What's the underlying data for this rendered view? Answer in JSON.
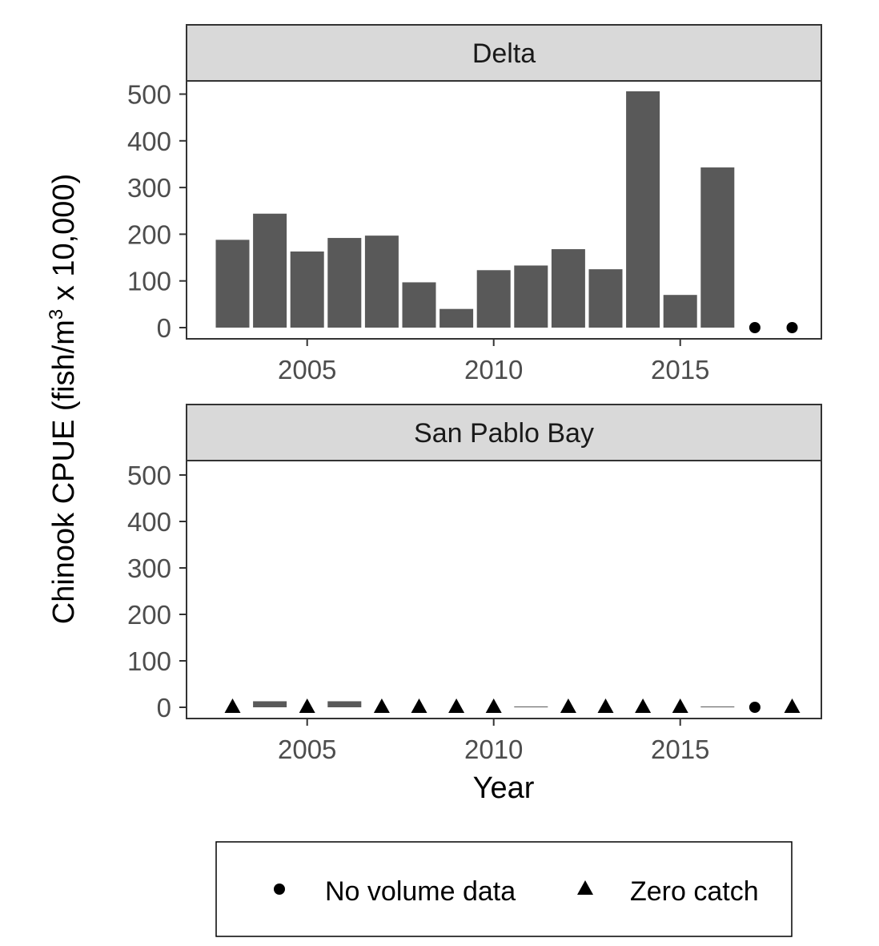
{
  "chart_data": {
    "type": "bar",
    "xlabel": "Year",
    "ylabel_main": "Chinook CPUE (fish/m",
    "ylabel_sup": "3",
    "ylabel_tail": " x 10,000)",
    "ylim": [
      0,
      550
    ],
    "y_ticks": [
      0,
      100,
      200,
      300,
      400,
      500
    ],
    "xlim": [
      2002.3,
      2018.7
    ],
    "x_ticks": [
      2005,
      2010,
      2015
    ],
    "grid": false,
    "colors": {
      "bar": "#595959",
      "strip_bg": "#d9d9d9",
      "panel_border": "#333333",
      "marker": "#000000"
    },
    "panels": [
      {
        "name": "Delta",
        "bars": [
          {
            "year": 2003,
            "value": 188
          },
          {
            "year": 2004,
            "value": 244
          },
          {
            "year": 2005,
            "value": 163
          },
          {
            "year": 2006,
            "value": 192
          },
          {
            "year": 2007,
            "value": 197
          },
          {
            "year": 2008,
            "value": 97
          },
          {
            "year": 2009,
            "value": 40
          },
          {
            "year": 2010,
            "value": 123
          },
          {
            "year": 2011,
            "value": 133
          },
          {
            "year": 2012,
            "value": 168
          },
          {
            "year": 2013,
            "value": 125
          },
          {
            "year": 2014,
            "value": 506
          },
          {
            "year": 2015,
            "value": 70
          },
          {
            "year": 2016,
            "value": 343
          }
        ],
        "no_volume_data": [
          2017,
          2018
        ],
        "zero_catch": []
      },
      {
        "name": "San Pablo Bay",
        "bars": [
          {
            "year": 2004,
            "value": 13
          },
          {
            "year": 2006,
            "value": 13
          },
          {
            "year": 2011,
            "value": 1
          },
          {
            "year": 2016,
            "value": 1
          }
        ],
        "no_volume_data": [
          2017
        ],
        "zero_catch": [
          2003,
          2005,
          2007,
          2008,
          2009,
          2010,
          2012,
          2013,
          2014,
          2015,
          2018
        ]
      }
    ],
    "legend": {
      "placement": "bottom",
      "items": [
        {
          "label": "No volume data",
          "shape": "circle"
        },
        {
          "label": "Zero catch",
          "shape": "triangle"
        }
      ]
    }
  }
}
